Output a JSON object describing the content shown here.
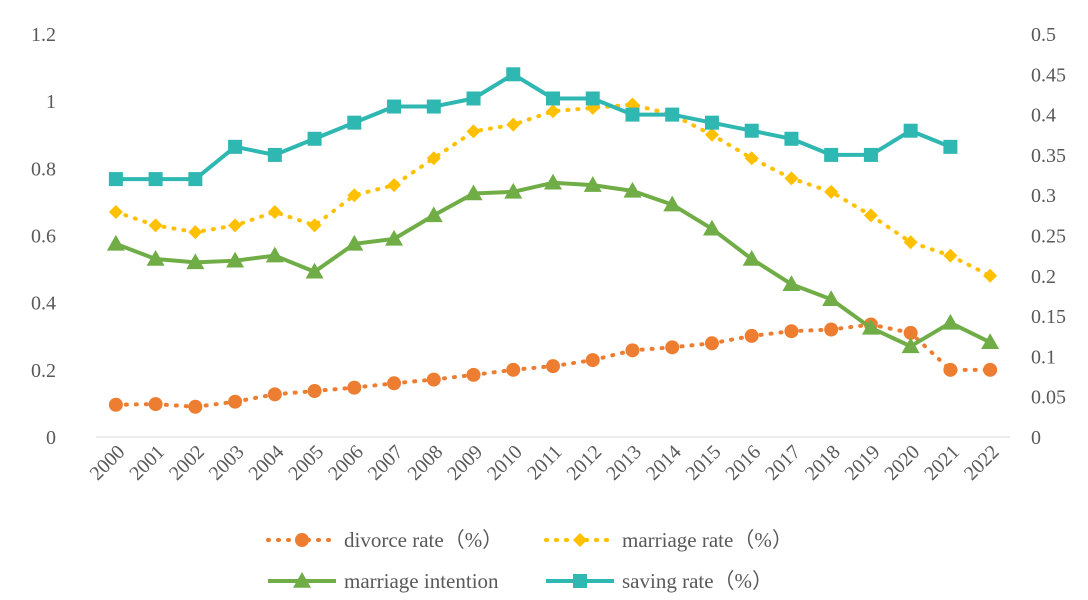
{
  "chart_data": {
    "type": "line",
    "title": "",
    "xlabel": "",
    "ylabel": "",
    "categories": [
      "2000",
      "2001",
      "2002",
      "2003",
      "2004",
      "2005",
      "2006",
      "2007",
      "2008",
      "2009",
      "2010",
      "2011",
      "2012",
      "2013",
      "2014",
      "2015",
      "2016",
      "2017",
      "2018",
      "2019",
      "2020",
      "2021",
      "2022"
    ],
    "y_left": {
      "min": 0,
      "max": 1.2,
      "ticks": [
        "0",
        "0.2",
        "0.4",
        "0.6",
        "0.8",
        "1",
        "1.2"
      ]
    },
    "y_right": {
      "min": 0,
      "max": 0.5,
      "ticks": [
        "0",
        "0.05",
        "0.1",
        "0.15",
        "0.2",
        "0.25",
        "0.3",
        "0.35",
        "0.4",
        "0.45",
        "0.5"
      ]
    },
    "grid": false,
    "legend_position": "bottom",
    "series": [
      {
        "name": "divorce rate（%）",
        "axis": "left",
        "color": "#ED7D31",
        "style": "dotted",
        "marker": "circle",
        "values": [
          0.096,
          0.098,
          0.09,
          0.105,
          0.127,
          0.137,
          0.147,
          0.16,
          0.171,
          0.185,
          0.2,
          0.211,
          0.229,
          0.258,
          0.267,
          0.279,
          0.301,
          0.315,
          0.32,
          0.335,
          0.31,
          0.2,
          0.2
        ]
      },
      {
        "name": "marriage rate（%）",
        "axis": "left",
        "color": "#FFC000",
        "style": "dotted",
        "marker": "diamond",
        "values": [
          0.67,
          0.63,
          0.61,
          0.63,
          0.67,
          0.63,
          0.72,
          0.75,
          0.83,
          0.91,
          0.93,
          0.97,
          0.98,
          0.99,
          0.96,
          0.9,
          0.83,
          0.77,
          0.73,
          0.66,
          0.58,
          0.54,
          0.48
        ]
      },
      {
        "name": "marriage intention",
        "axis": "left",
        "color": "#70AD47",
        "style": "solid",
        "marker": "triangle",
        "values": [
          0.575,
          0.53,
          0.52,
          0.525,
          0.54,
          0.492,
          0.575,
          0.59,
          0.66,
          0.725,
          0.73,
          0.757,
          0.75,
          0.733,
          0.692,
          0.62,
          0.53,
          0.455,
          0.41,
          0.325,
          0.27,
          0.34,
          0.282
        ]
      },
      {
        "name": "saving rate（%）",
        "axis": "right",
        "color": "#2FB7B2",
        "style": "solid",
        "marker": "square",
        "values": [
          0.32,
          0.32,
          0.32,
          0.36,
          0.35,
          0.37,
          0.39,
          0.41,
          0.41,
          0.42,
          0.45,
          0.42,
          0.42,
          0.4,
          0.4,
          0.39,
          0.38,
          0.37,
          0.35,
          0.35,
          0.38,
          0.36,
          null
        ]
      }
    ]
  }
}
